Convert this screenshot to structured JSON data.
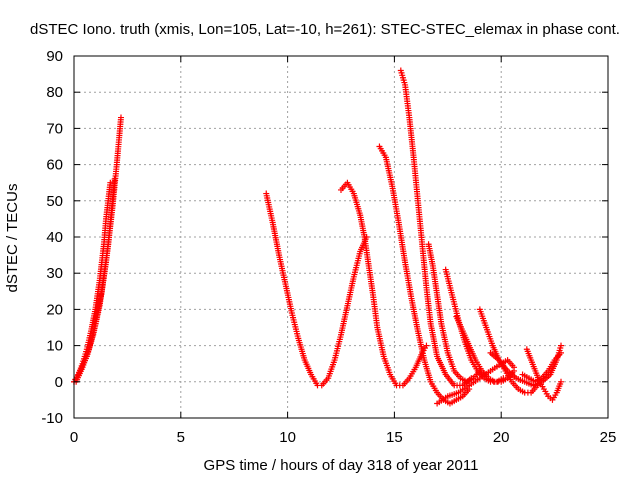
{
  "chart_data": {
    "type": "scatter",
    "title": "dSTEC Iono. truth (xmis, Lon=105, Lat=-10, h=261): STEC-STEC_elemax in phase cont.",
    "xlabel": "GPS time / hours of day 318 of year 2011",
    "ylabel": "dSTEC  / TECUs",
    "xlim": [
      0,
      25
    ],
    "ylim": [
      -10,
      90
    ],
    "xticks": [
      0,
      5,
      10,
      15,
      20,
      25
    ],
    "yticks": [
      -10,
      0,
      10,
      20,
      30,
      40,
      50,
      60,
      70,
      80,
      90
    ],
    "grid": true,
    "legend": "none",
    "marker": "plus",
    "color": "#ff0000",
    "series": [
      {
        "x": [
          0.0,
          0.2,
          0.4,
          0.6,
          0.8,
          1.0,
          1.2,
          1.4,
          1.5,
          1.6,
          1.7
        ],
        "y": [
          0,
          2,
          5,
          9,
          14,
          20,
          28,
          38,
          45,
          50,
          55
        ]
      },
      {
        "x": [
          0.0,
          0.3,
          0.6,
          0.9,
          1.2,
          1.5,
          1.8,
          2.0,
          2.2
        ],
        "y": [
          0,
          3,
          7,
          13,
          21,
          33,
          48,
          60,
          73
        ]
      },
      {
        "x": [
          0.1,
          0.4,
          0.7,
          1.0,
          1.3,
          1.6,
          1.9
        ],
        "y": [
          0,
          4,
          9,
          16,
          25,
          38,
          56
        ]
      },
      {
        "x": [
          9.0,
          9.3,
          9.6,
          9.9,
          10.2,
          10.5,
          10.8,
          11.1,
          11.4,
          11.6,
          11.9,
          12.2,
          12.5,
          12.8,
          13.1,
          13.4,
          13.7
        ],
        "y": [
          52,
          44,
          35,
          27,
          19,
          12,
          6,
          2,
          -1,
          -1,
          1,
          6,
          13,
          21,
          29,
          36,
          40
        ]
      },
      {
        "x": [
          12.5,
          12.8,
          13.1,
          13.4,
          13.6,
          13.8,
          14.0,
          14.2,
          14.5,
          14.8,
          15.1,
          15.4,
          15.7,
          16.0,
          16.3,
          16.5
        ],
        "y": [
          53,
          55,
          52,
          46,
          40,
          32,
          24,
          15,
          7,
          2,
          -1,
          -1,
          1,
          4,
          8,
          10
        ]
      },
      {
        "x": [
          14.3,
          14.6,
          14.9,
          15.2,
          15.5,
          15.8,
          16.1,
          16.4,
          16.7,
          17.0,
          17.3,
          17.6,
          17.9,
          18.2,
          18.5
        ],
        "y": [
          65,
          62,
          54,
          44,
          33,
          23,
          14,
          6,
          0,
          -3,
          -5,
          -6,
          -5,
          -4,
          -2
        ]
      },
      {
        "x": [
          15.3,
          15.5,
          15.7,
          15.9,
          16.1,
          16.3,
          16.5,
          16.7,
          17.0,
          17.4,
          17.8,
          18.2,
          18.6
        ],
        "y": [
          86,
          82,
          73,
          62,
          50,
          38,
          26,
          16,
          7,
          2,
          -1,
          -1,
          1
        ]
      },
      {
        "x": [
          16.6,
          16.8,
          17.0,
          17.2,
          17.5,
          17.8,
          18.1,
          18.4,
          18.7,
          19.0
        ],
        "y": [
          38,
          32,
          24,
          16,
          8,
          3,
          1,
          0,
          1,
          3
        ]
      },
      {
        "x": [
          17.4,
          17.7,
          18.0,
          18.3,
          18.6,
          18.9,
          19.2,
          19.5,
          19.8,
          20.1
        ],
        "y": [
          31,
          24,
          17,
          11,
          6,
          3,
          1,
          0,
          0,
          1
        ]
      },
      {
        "x": [
          17.9,
          18.2,
          18.5,
          18.8,
          19.1,
          19.4,
          19.7,
          20.0,
          20.3,
          20.6
        ],
        "y": [
          18,
          14,
          10,
          6,
          3,
          1,
          0,
          0,
          1,
          3
        ]
      },
      {
        "x": [
          19.0,
          19.3,
          19.6,
          19.9,
          20.2,
          20.5,
          20.8,
          21.1,
          21.4,
          21.7
        ],
        "y": [
          20,
          15,
          10,
          6,
          3,
          0,
          -2,
          -3,
          -3,
          -1
        ]
      },
      {
        "x": [
          17.0,
          17.5,
          18.0,
          18.5,
          19.0,
          19.5,
          20.0,
          20.3,
          20.6
        ],
        "y": [
          -6,
          -4,
          -3,
          -1,
          1,
          3,
          5,
          6,
          4
        ]
      },
      {
        "x": [
          19.5,
          19.9,
          20.3,
          20.7,
          21.1,
          21.5,
          21.9,
          22.3,
          22.6,
          22.8
        ],
        "y": [
          8,
          6,
          3,
          1,
          0,
          -1,
          0,
          2,
          6,
          10
        ]
      },
      {
        "x": [
          21.2,
          21.4,
          21.6,
          21.8,
          22.0,
          22.2,
          22.4,
          22.6,
          22.8
        ],
        "y": [
          9,
          6,
          3,
          0,
          -2,
          -4,
          -5,
          -3,
          0
        ]
      },
      {
        "x": [
          21.0,
          21.3,
          21.6,
          21.9,
          22.2,
          22.5,
          22.8
        ],
        "y": [
          2,
          1,
          0,
          1,
          3,
          6,
          8
        ]
      }
    ]
  }
}
